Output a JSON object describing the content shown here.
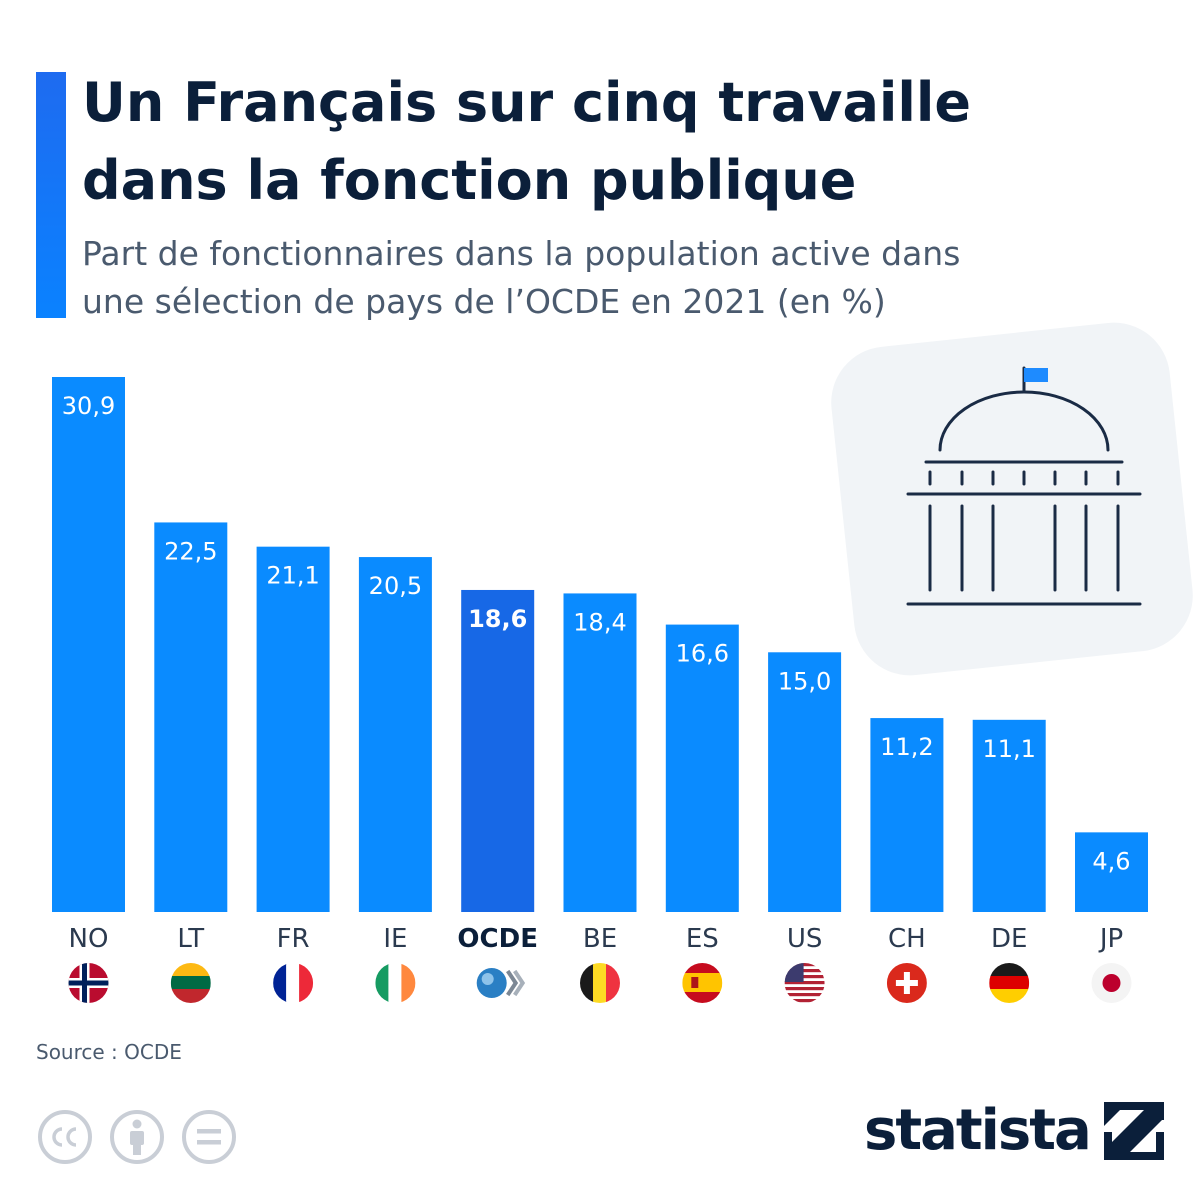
{
  "title_line1": "Un Français sur cinq travaille",
  "title_line2": "dans la fonction publique",
  "subtitle_line1": "Part de fonctionnaires dans la population active dans",
  "subtitle_line2": "une sélection de pays de l’OCDE en 2021 (en %)",
  "source": "Source : OCDE",
  "brand": "statista",
  "colors": {
    "bar": "#0a8bff",
    "bar_highlight": "#1768e6",
    "title": "#0b1f3a",
    "accent": "#1e6bf0"
  },
  "icons": [
    "capitol-building-icon",
    "cc-icon",
    "attribution-icon",
    "no-derivatives-icon",
    "statista-logo-icon"
  ],
  "chart_data": {
    "type": "bar",
    "title": "Un Français sur cinq travaille dans la fonction publique",
    "subtitle": "Part de fonctionnaires dans la population active dans une sélection de pays de l’OCDE en 2021 (en %)",
    "xlabel": "",
    "ylabel": "",
    "ylim": [
      0,
      30.9
    ],
    "grid": false,
    "categories": [
      "NO",
      "LT",
      "FR",
      "IE",
      "OCDE",
      "BE",
      "ES",
      "US",
      "CH",
      "DE",
      "JP"
    ],
    "values": [
      30.9,
      22.5,
      21.1,
      20.5,
      18.6,
      18.4,
      16.6,
      15.0,
      11.2,
      11.1,
      4.6
    ],
    "value_labels": [
      "30,9",
      "22,5",
      "21,1",
      "20,5",
      "18,6",
      "18,4",
      "16,6",
      "15,0",
      "11,2",
      "11,1",
      "4,6"
    ],
    "highlight": "OCDE",
    "flags": [
      "norway-flag-icon",
      "lithuania-flag-icon",
      "france-flag-icon",
      "ireland-flag-icon",
      "oecd-logo-icon",
      "belgium-flag-icon",
      "spain-flag-icon",
      "usa-flag-icon",
      "switzerland-flag-icon",
      "germany-flag-icon",
      "japan-flag-icon"
    ]
  }
}
